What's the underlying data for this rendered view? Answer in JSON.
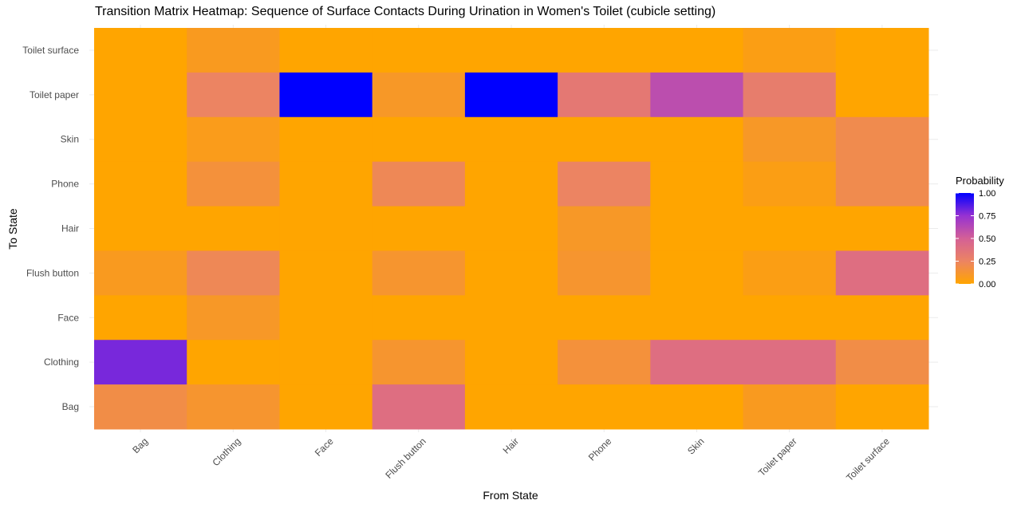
{
  "chart_data": {
    "type": "heatmap",
    "title": "Transition Matrix Heatmap: Sequence of Surface Contacts During Urination in Women's Toilet (cubicle setting)",
    "xlabel": "From State",
    "ylabel": "To State",
    "x_categories": [
      "Bag",
      "Clothing",
      "Face",
      "Flush button",
      "Hair",
      "Phone",
      "Skin",
      "Toilet paper",
      "Toilet surface"
    ],
    "y_categories": [
      "Toilet surface",
      "Toilet paper",
      "Skin",
      "Phone",
      "Hair",
      "Flush button",
      "Face",
      "Clothing",
      "Bag"
    ],
    "values": [
      [
        0.0,
        0.08,
        0.0,
        0.0,
        0.0,
        0.0,
        0.0,
        0.05,
        0.0
      ],
      [
        0.0,
        0.25,
        1.0,
        0.1,
        1.0,
        0.33,
        0.6,
        0.3,
        0.0
      ],
      [
        0.0,
        0.07,
        0.0,
        0.0,
        0.0,
        0.0,
        0.0,
        0.1,
        0.2
      ],
      [
        0.0,
        0.15,
        0.0,
        0.22,
        0.0,
        0.25,
        0.0,
        0.05,
        0.2
      ],
      [
        0.0,
        0.0,
        0.0,
        0.0,
        0.0,
        0.1,
        0.0,
        0.0,
        0.0
      ],
      [
        0.08,
        0.22,
        0.0,
        0.12,
        0.0,
        0.12,
        0.0,
        0.05,
        0.4
      ],
      [
        0.0,
        0.1,
        0.0,
        0.0,
        0.0,
        0.0,
        0.0,
        0.0,
        0.0
      ],
      [
        0.8,
        0.0,
        0.0,
        0.12,
        0.0,
        0.15,
        0.4,
        0.4,
        0.18
      ],
      [
        0.18,
        0.12,
        0.0,
        0.4,
        0.0,
        0.0,
        0.0,
        0.08,
        0.0
      ]
    ],
    "legend": {
      "title": "Probability",
      "ticks": [
        "1.00",
        "0.75",
        "0.50",
        "0.25",
        "0.00"
      ],
      "position": "right"
    },
    "colors": {
      "low": "#FFA500",
      "high": "#0000FF"
    },
    "value_range": [
      0,
      1
    ],
    "grid": true
  }
}
